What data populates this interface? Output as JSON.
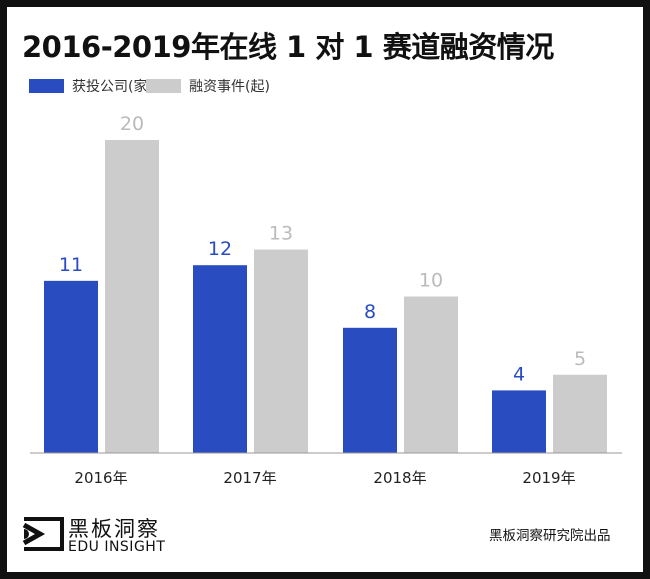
{
  "chart_data": {
    "type": "bar",
    "title": "2016-2019年在线 1 对 1 赛道融资情况",
    "categories": [
      "2016年",
      "2017年",
      "2018年",
      "2019年"
    ],
    "series": [
      {
        "name": "获投公司(家)",
        "values": [
          11,
          12,
          8,
          4
        ],
        "color": "#2a4cc1"
      },
      {
        "name": "融资事件(起)",
        "values": [
          20,
          13,
          10,
          5
        ],
        "color": "#cccccc"
      }
    ],
    "ylim": [
      0,
      20
    ],
    "grid": false,
    "legend": "top-left"
  },
  "branding": {
    "name_cn": "黑板洞察",
    "name_en": "EDU INSIGHT",
    "credit": "黑板洞察研究院出品"
  }
}
